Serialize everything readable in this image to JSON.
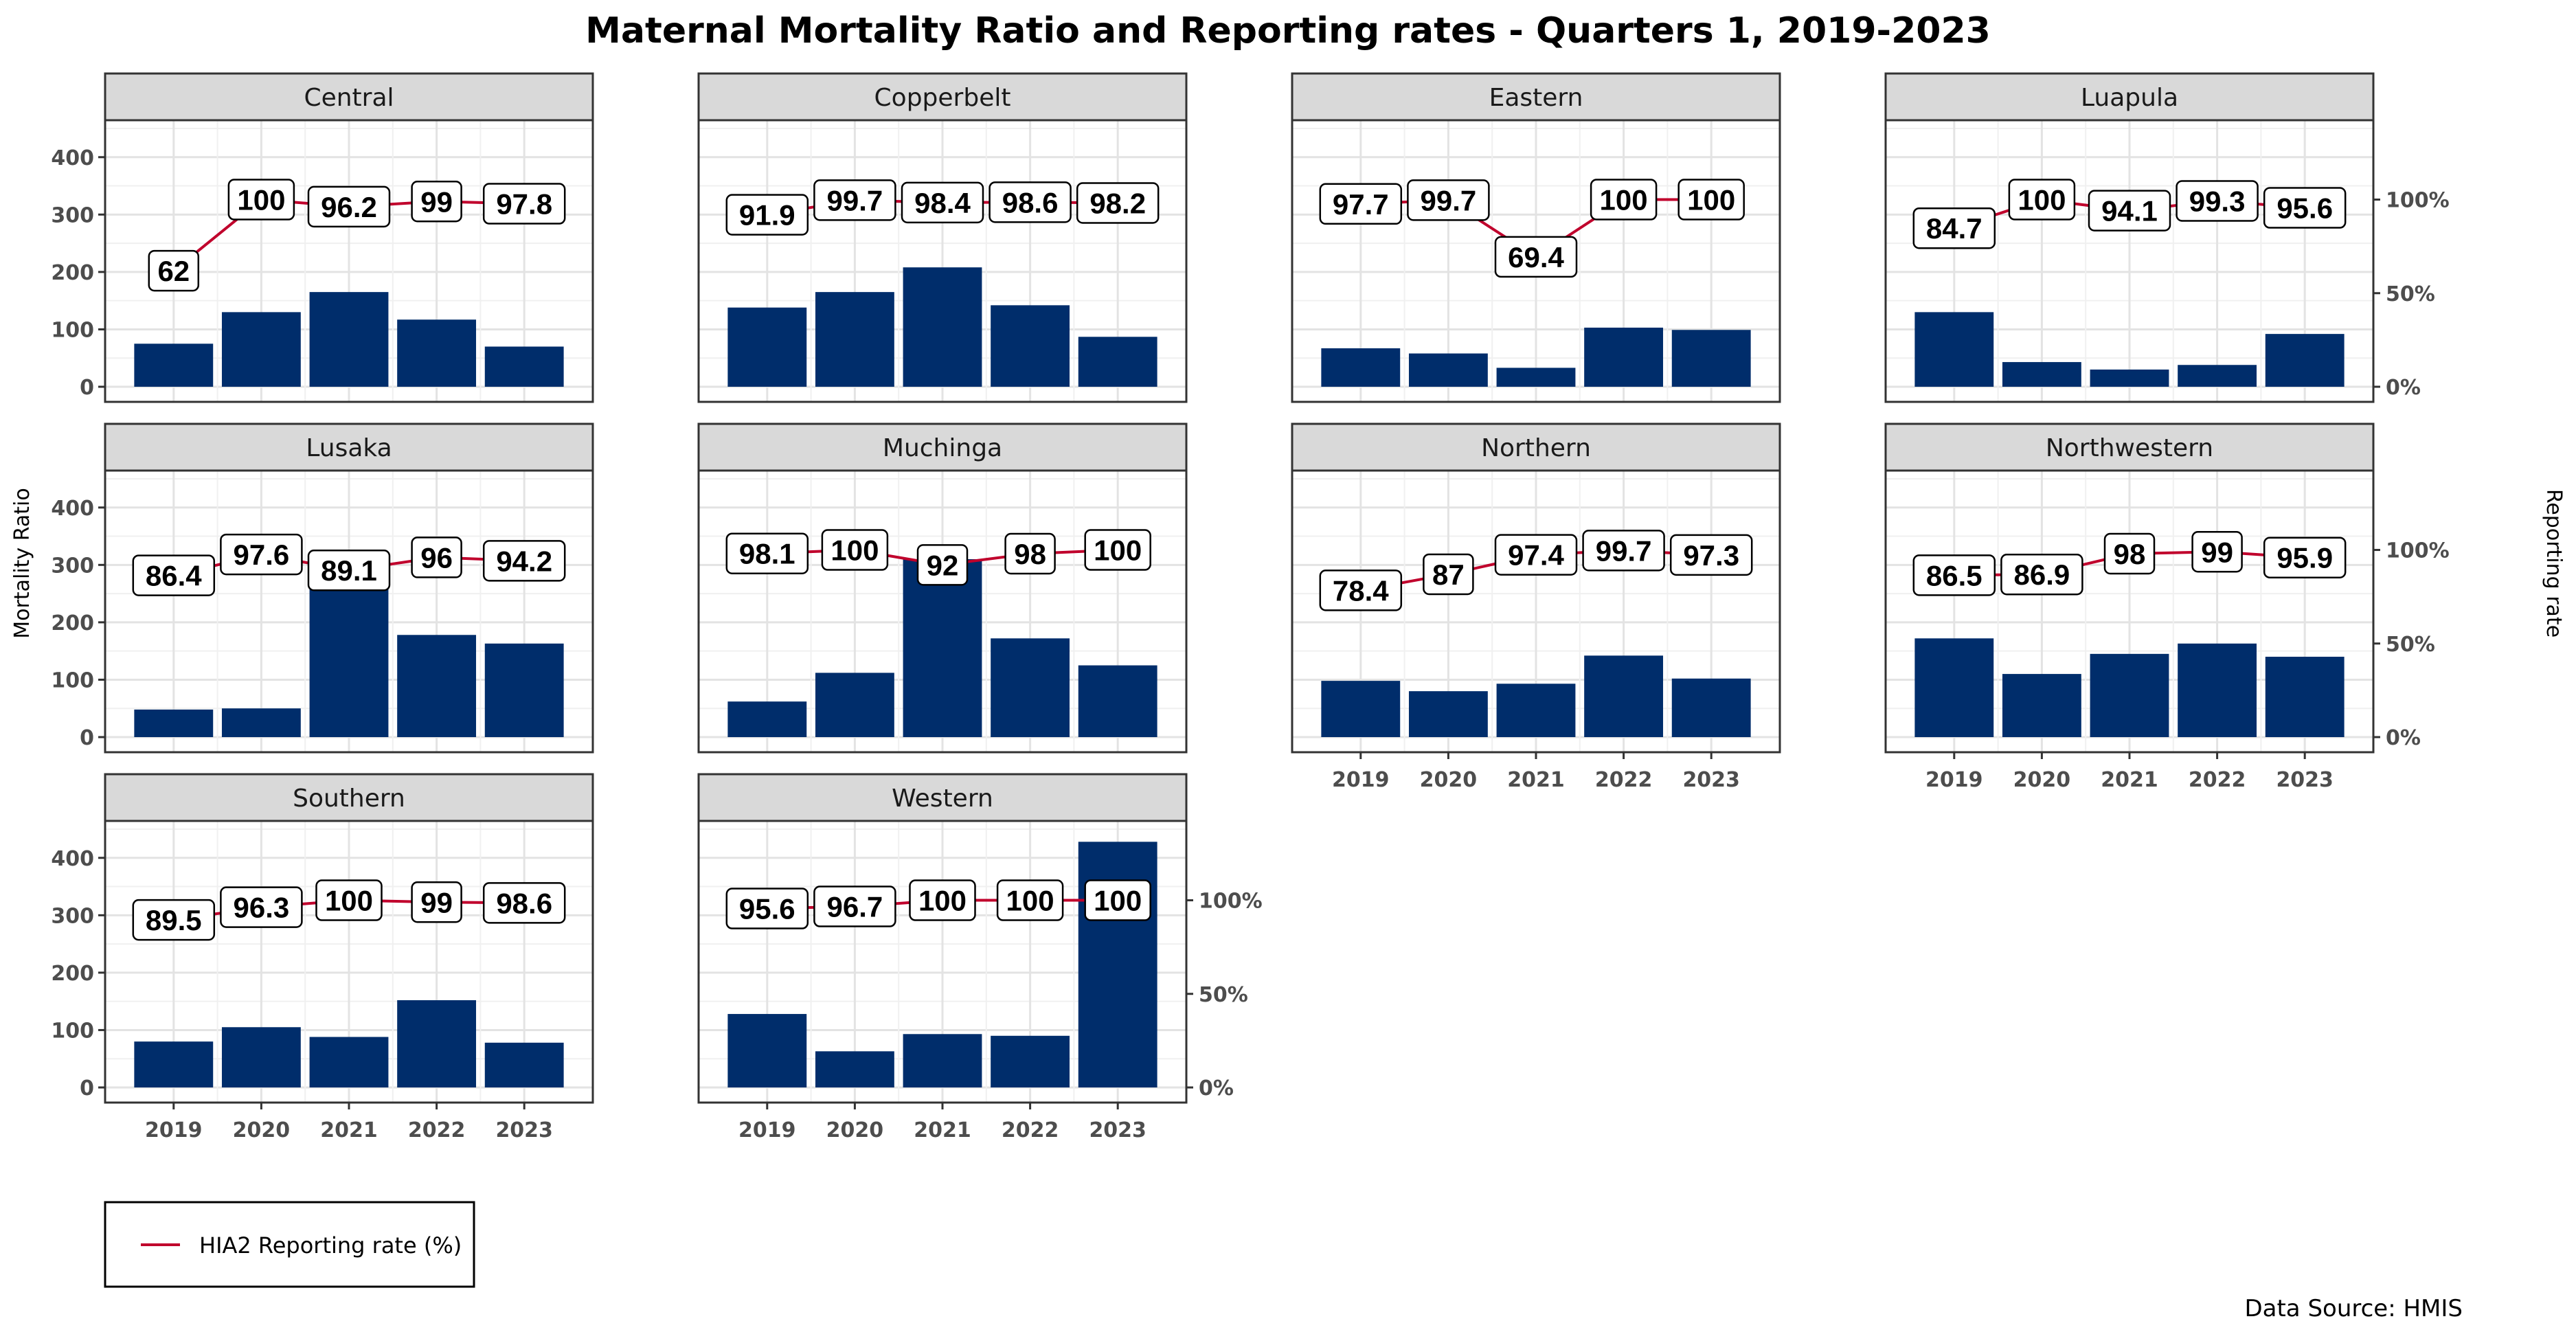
{
  "chart_data": {
    "type": "bar",
    "title": "Maternal Mortality Ratio and Reporting rates - Quarters 1, 2019-2023",
    "ylabel": "Mortality Ratio",
    "y2label": "Reporting rate",
    "categories": [
      "2019",
      "2020",
      "2021",
      "2022",
      "2023"
    ],
    "ylim": [
      0,
      450
    ],
    "y_ticks": [
      "0",
      "100",
      "200",
      "300",
      "400"
    ],
    "y2lim": [
      0,
      1.38
    ],
    "y2_ticks": [
      "0%",
      "50%",
      "100%"
    ],
    "bar_color": "#002d6b",
    "line_color": "#c0002c",
    "grid": true,
    "panels": [
      {
        "name": "Central",
        "bars": [
          75,
          130,
          165,
          117,
          70
        ],
        "rate": [
          62,
          100,
          96.2,
          99,
          97.8
        ],
        "rate_labels": [
          "62",
          "100",
          "96.2",
          "99",
          "97.8"
        ]
      },
      {
        "name": "Copperbelt",
        "bars": [
          138,
          165,
          208,
          142,
          87
        ],
        "rate": [
          91.9,
          99.7,
          98.4,
          98.6,
          98.2
        ],
        "rate_labels": [
          "91.9",
          "99.7",
          "98.4",
          "98.6",
          "98.2"
        ]
      },
      {
        "name": "Eastern",
        "bars": [
          67,
          58,
          33,
          103,
          99
        ],
        "rate": [
          97.7,
          99.7,
          69.4,
          100,
          100
        ],
        "rate_labels": [
          "97.7",
          "99.7",
          "69.4",
          "100",
          "100"
        ]
      },
      {
        "name": "Luapula",
        "bars": [
          130,
          43,
          30,
          38,
          92
        ],
        "rate": [
          84.7,
          100,
          94.1,
          99.3,
          95.6
        ],
        "rate_labels": [
          "84.7",
          "100",
          "94.1",
          "99.3",
          "95.6"
        ]
      },
      {
        "name": "Lusaka",
        "bars": [
          48,
          50,
          260,
          178,
          163
        ],
        "rate": [
          86.4,
          97.6,
          89.1,
          96,
          94.2
        ],
        "rate_labels": [
          "86.4",
          "97.6",
          "89.1",
          "96",
          "94.2"
        ]
      },
      {
        "name": "Muchinga",
        "bars": [
          62,
          112,
          310,
          172,
          125
        ],
        "rate": [
          98.1,
          100,
          92,
          98,
          100
        ],
        "rate_labels": [
          "98.1",
          "100",
          "92",
          "98",
          "100"
        ]
      },
      {
        "name": "Northern",
        "bars": [
          98,
          80,
          93,
          142,
          102
        ],
        "rate": [
          78.4,
          87,
          97.4,
          99.7,
          97.3
        ],
        "rate_labels": [
          "78.4",
          "87",
          "97.4",
          "99.7",
          "97.3"
        ]
      },
      {
        "name": "Northwestern",
        "bars": [
          172,
          110,
          145,
          163,
          140
        ],
        "rate": [
          86.5,
          86.9,
          98,
          99,
          95.9
        ],
        "rate_labels": [
          "86.5",
          "86.9",
          "98",
          "99",
          "95.9"
        ]
      },
      {
        "name": "Southern",
        "bars": [
          80,
          105,
          88,
          152,
          78
        ],
        "rate": [
          89.5,
          96.3,
          100,
          99,
          98.6
        ],
        "rate_labels": [
          "89.5",
          "96.3",
          "100",
          "99",
          "98.6"
        ]
      },
      {
        "name": "Western",
        "bars": [
          128,
          63,
          93,
          90,
          428
        ],
        "rate": [
          95.6,
          96.7,
          100,
          100,
          100
        ],
        "rate_labels": [
          "95.6",
          "96.7",
          "100",
          "100",
          "100"
        ]
      }
    ],
    "legend": {
      "label": "HIA2 Reporting rate (%)",
      "position": "bottom-left"
    },
    "source": "Data Source: HMIS"
  }
}
